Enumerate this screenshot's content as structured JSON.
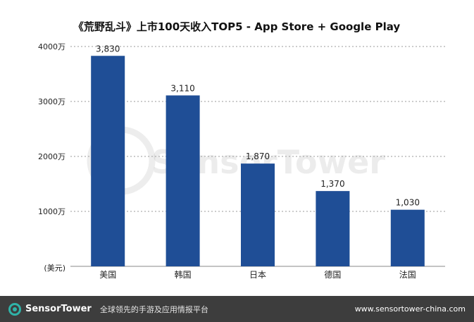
{
  "chart_data": {
    "type": "bar",
    "title": "《荒野乱斗》上市100天收入TOP5 - App Store + Google Play",
    "categories": [
      "美国",
      "韩国",
      "日本",
      "德国",
      "法国"
    ],
    "values": [
      3830,
      3110,
      1870,
      1370,
      1030
    ],
    "value_labels": [
      "3,830",
      "3,110",
      "1,870",
      "1,370",
      "1,030"
    ],
    "yticks": [
      {
        "value": 1000,
        "label": "1000万"
      },
      {
        "value": 2000,
        "label": "2000万"
      },
      {
        "value": 3000,
        "label": "3000万"
      },
      {
        "value": 4000,
        "label": "4000万"
      }
    ],
    "ylabel": "(美元)",
    "ylim": [
      0,
      4000
    ],
    "grid": true,
    "bar_color": "#1f4e96"
  },
  "watermark": "SensorTower",
  "footer": {
    "brand": "SensorTower",
    "tagline": "全球领先的手游及应用情报平台",
    "website": "www.sensortower-china.com"
  }
}
